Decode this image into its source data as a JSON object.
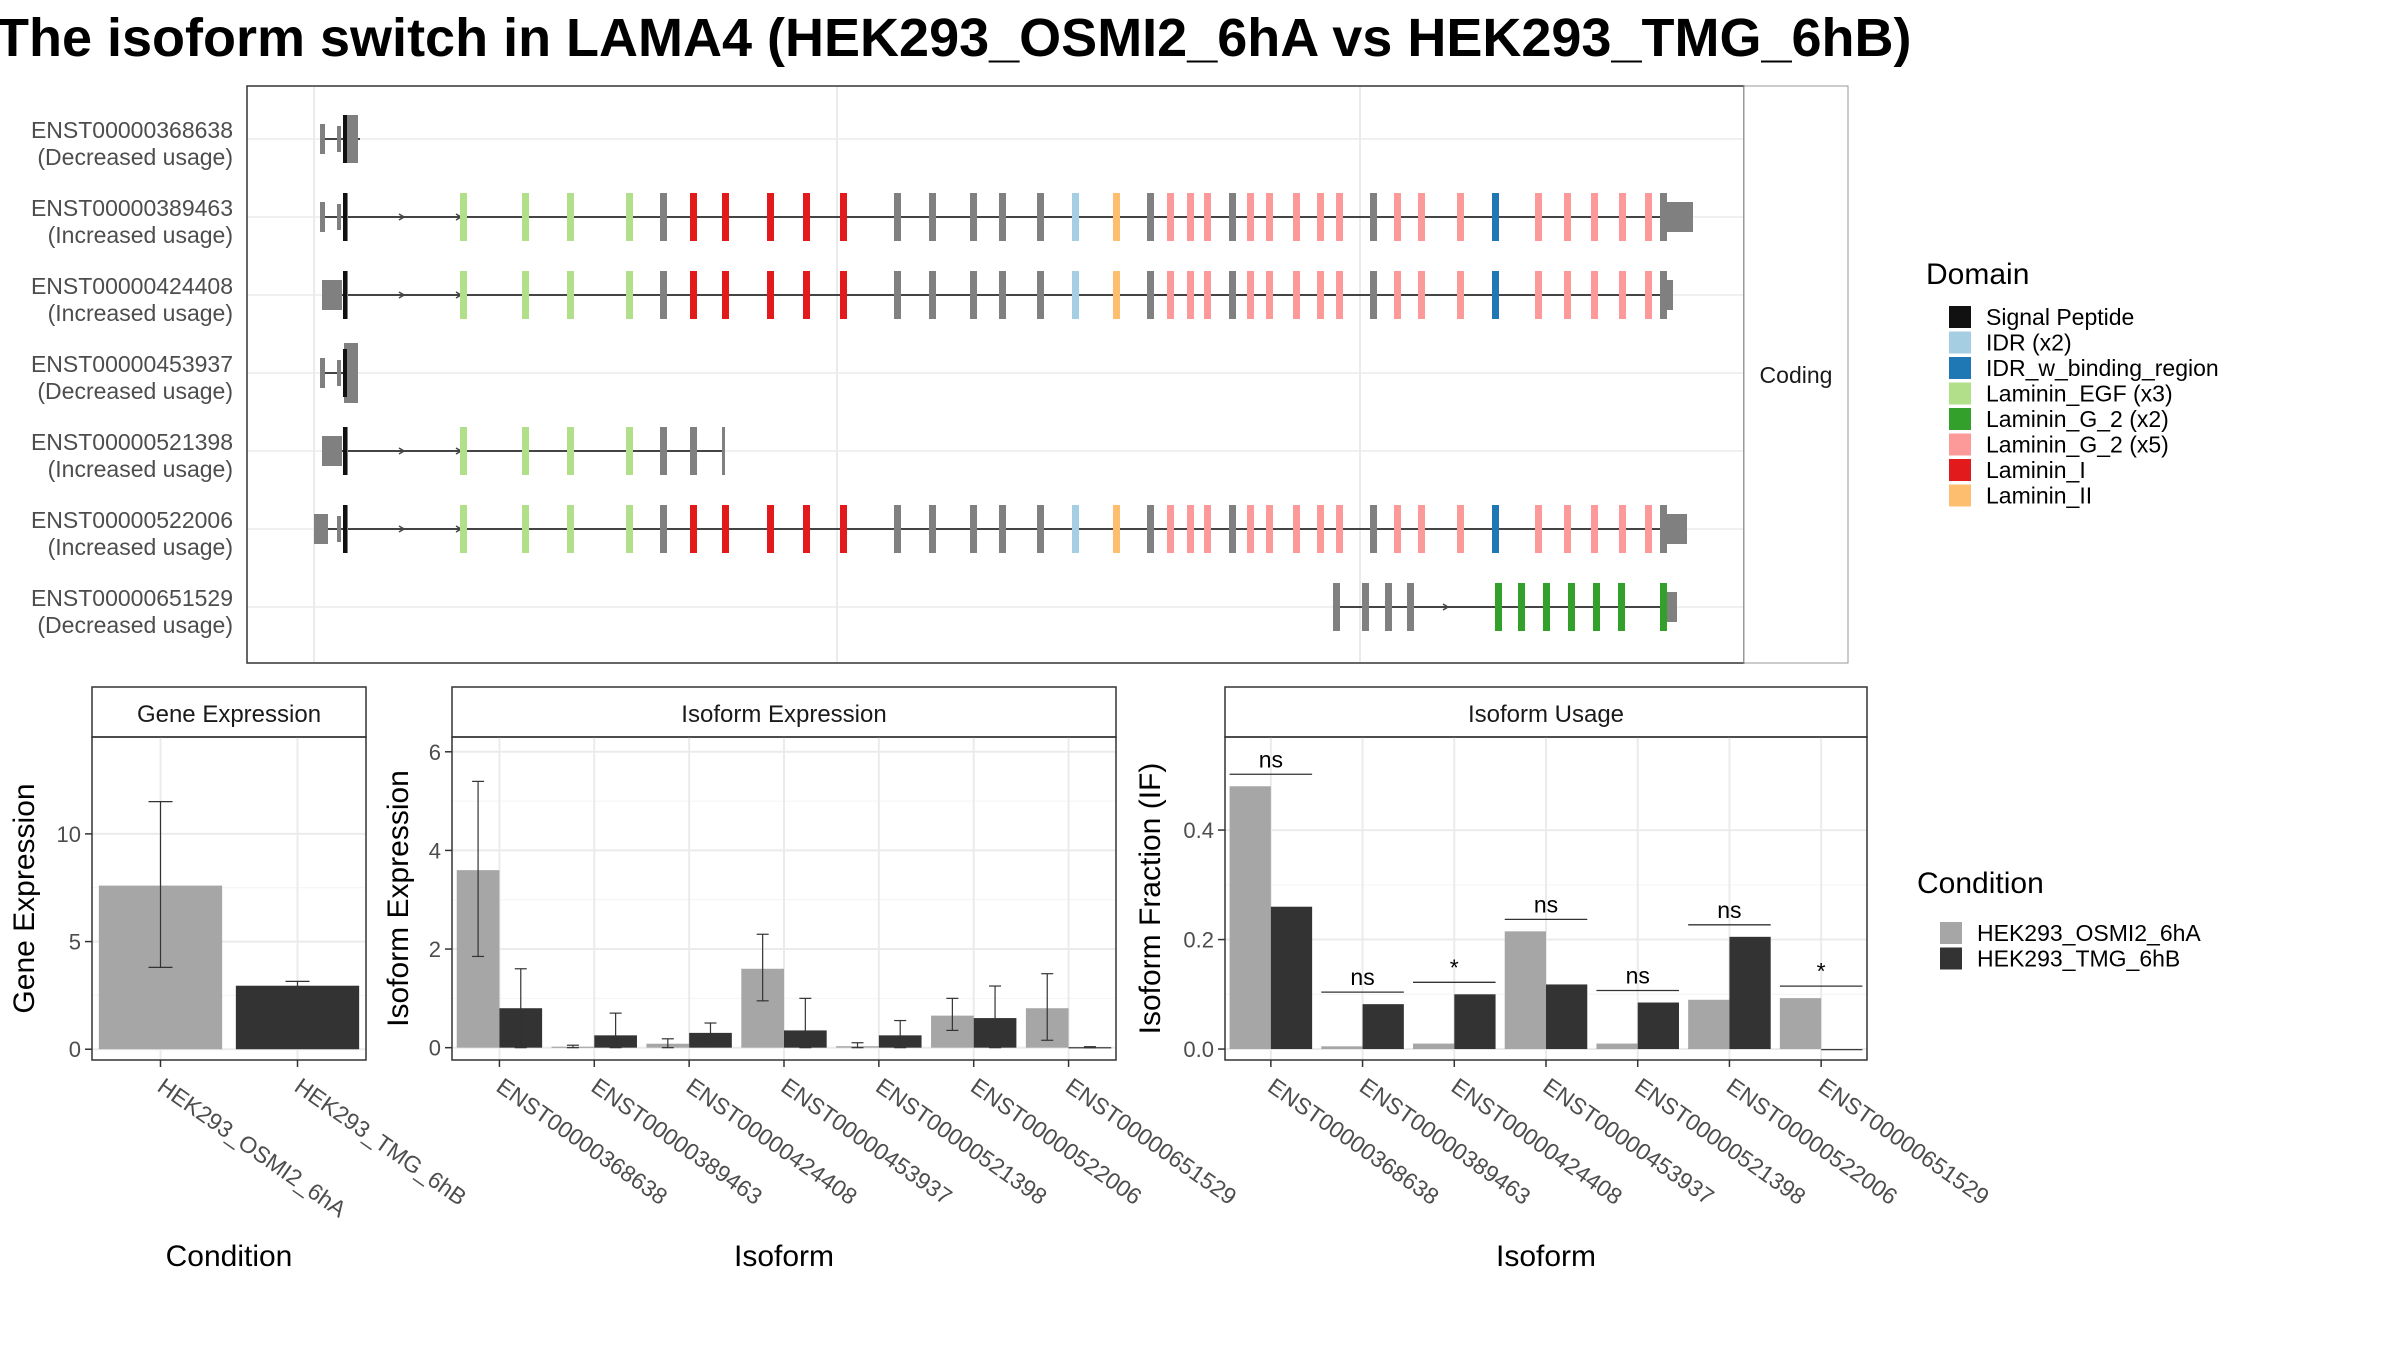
{
  "title": "The isoform switch in LAMA4 (HEK293_OSMI2_6hA vs HEK293_TMG_6hB)",
  "colors": {
    "cond_a": "#a6a6a6",
    "cond_b": "#333333",
    "utr": "#808080",
    "grid": "#ebebeb",
    "domain_colors": [
      "#111111",
      "#a6cee3",
      "#1f78b4",
      "#b2df8a",
      "#33a02c",
      "#fb9a99",
      "#e31a1c",
      "#fdbf6f"
    ]
  },
  "transcript_panel": {
    "strip_label": "Coding",
    "transcripts": [
      {
        "id": "ENST00000368638",
        "status": "(Decreased usage)"
      },
      {
        "id": "ENST00000389463",
        "status": "(Increased usage)"
      },
      {
        "id": "ENST00000424408",
        "status": "(Increased usage)"
      },
      {
        "id": "ENST00000453937",
        "status": "(Decreased usage)"
      },
      {
        "id": "ENST00000521398",
        "status": "(Increased usage)"
      },
      {
        "id": "ENST00000522006",
        "status": "(Increased usage)"
      },
      {
        "id": "ENST00000651529",
        "status": "(Decreased usage)"
      }
    ]
  },
  "domain_legend": {
    "title": "Domain",
    "items": [
      {
        "label": "Signal Peptide",
        "color": "#111111"
      },
      {
        "label": "IDR (x2)",
        "color": "#a6cee3"
      },
      {
        "label": "IDR_w_binding_region",
        "color": "#1f78b4"
      },
      {
        "label": "Laminin_EGF (x3)",
        "color": "#b2df8a"
      },
      {
        "label": "Laminin_G_2 (x2)",
        "color": "#33a02c"
      },
      {
        "label": "Laminin_G_2 (x5)",
        "color": "#fb9a99"
      },
      {
        "label": "Laminin_I",
        "color": "#e31a1c"
      },
      {
        "label": "Laminin_II",
        "color": "#fdbf6f"
      }
    ]
  },
  "condition_legend": {
    "title": "Condition",
    "items": [
      {
        "label": "HEK293_OSMI2_6hA",
        "color": "#a6a6a6"
      },
      {
        "label": "HEK293_TMG_6hB",
        "color": "#333333"
      }
    ]
  },
  "chart_data": [
    {
      "type": "bar",
      "title": "Gene Expression",
      "xlabel": "Condition",
      "ylabel": "Gene Expression",
      "categories": [
        "HEK293_OSMI2_6hA",
        "HEK293_TMG_6hB"
      ],
      "values": [
        7.6,
        2.95
      ],
      "errors": [
        [
          3.8,
          11.5
        ],
        [
          2.8,
          3.15
        ]
      ],
      "ylim": [
        -0.5,
        14.5
      ],
      "yticks": [
        0,
        5,
        10
      ],
      "grid": true
    },
    {
      "type": "bar",
      "title": "Isoform Expression",
      "xlabel": "Isoform",
      "ylabel": "Isoform Expression",
      "categories": [
        "ENST00000368638",
        "ENST00000389463",
        "ENST00000424408",
        "ENST00000453937",
        "ENST00000521398",
        "ENST00000522006",
        "ENST00000651529"
      ],
      "series": [
        {
          "name": "HEK293_OSMI2_6hA",
          "values": [
            3.6,
            0.02,
            0.08,
            1.6,
            0.03,
            0.65,
            0.8
          ],
          "errors": [
            [
              1.85,
              5.4
            ],
            [
              0,
              0.05
            ],
            [
              0,
              0.18
            ],
            [
              0.95,
              2.3
            ],
            [
              0,
              0.1
            ],
            [
              0.35,
              1.0
            ],
            [
              0.15,
              1.5
            ]
          ]
        },
        {
          "name": "HEK293_TMG_6hB",
          "values": [
            0.8,
            0.25,
            0.3,
            0.35,
            0.25,
            0.6,
            0.01
          ],
          "errors": [
            [
              0,
              1.6
            ],
            [
              0,
              0.7
            ],
            [
              0.1,
              0.5
            ],
            [
              0,
              1.0
            ],
            [
              0,
              0.55
            ],
            [
              0,
              1.25
            ],
            [
              0,
              0.02
            ]
          ]
        }
      ],
      "ylim": [
        -0.25,
        6.3
      ],
      "yticks": [
        0,
        2,
        4,
        6
      ],
      "grid": true
    },
    {
      "type": "bar",
      "title": "Isoform Usage",
      "xlabel": "Isoform",
      "ylabel": "Isoform Fraction (IF)",
      "categories": [
        "ENST00000368638",
        "ENST00000389463",
        "ENST00000424408",
        "ENST00000453937",
        "ENST00000521398",
        "ENST00000522006",
        "ENST00000651529"
      ],
      "series": [
        {
          "name": "HEK293_OSMI2_6hA",
          "values": [
            0.48,
            0.005,
            0.01,
            0.215,
            0.01,
            0.09,
            0.093
          ]
        },
        {
          "name": "HEK293_TMG_6hB",
          "values": [
            0.26,
            0.082,
            0.1,
            0.118,
            0.085,
            0.205,
            0.0
          ]
        }
      ],
      "significance": [
        "ns",
        "ns",
        "*",
        "ns",
        "ns",
        "ns",
        "*"
      ],
      "ylim": [
        -0.02,
        0.57
      ],
      "yticks": [
        0.0,
        0.2,
        0.4
      ],
      "ytick_labels": [
        "0.0",
        "0.2",
        "0.4"
      ],
      "grid": true
    }
  ]
}
